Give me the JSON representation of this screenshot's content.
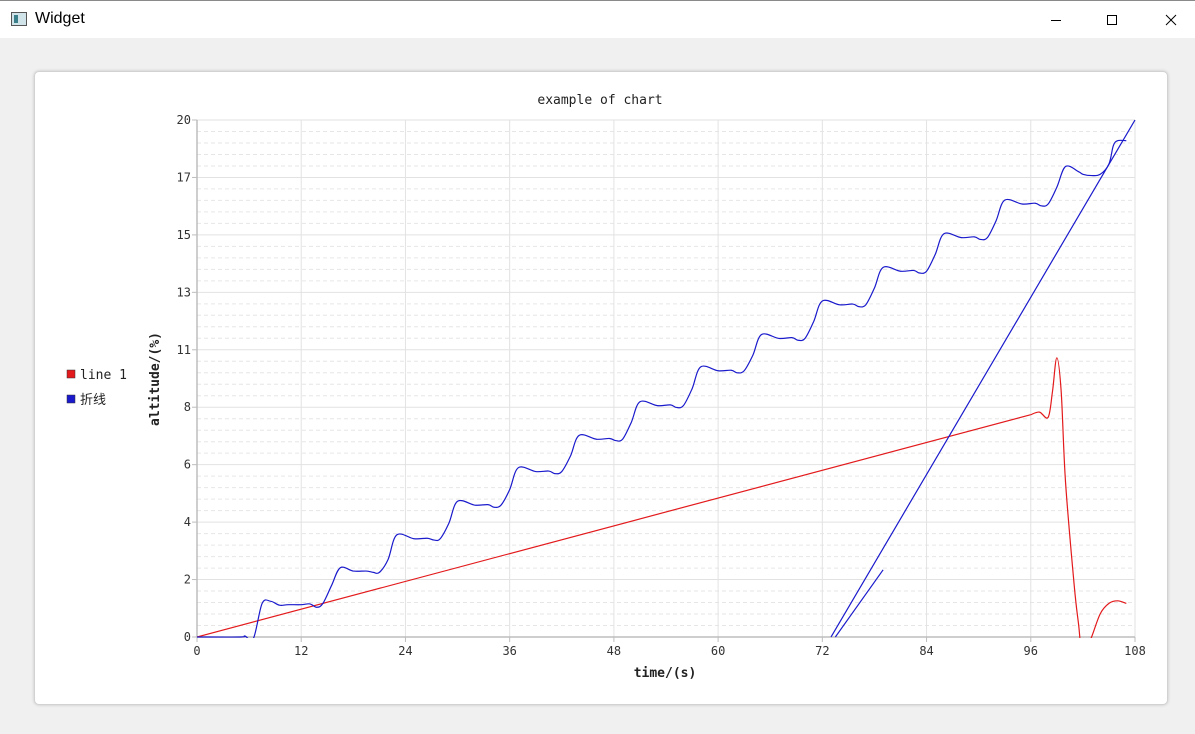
{
  "window": {
    "title": "Widget",
    "icon": "app-window-icon",
    "controls": [
      "minimize-icon",
      "maximize-icon",
      "close-icon"
    ]
  },
  "chart_data": {
    "type": "line",
    "title": "example of chart",
    "xlabel": "time/(s)",
    "ylabel": "altitude/(%)",
    "xlim": [
      0,
      108
    ],
    "ylim": [
      0,
      20
    ],
    "x_ticks": [
      "0",
      "12",
      "24",
      "36",
      "48",
      "60",
      "72",
      "84",
      "96",
      "108"
    ],
    "y_ticks": [
      "0",
      "2",
      "4",
      "6",
      "8",
      "11",
      "13",
      "15",
      "17",
      "20"
    ],
    "grid": true,
    "minor_grid": true,
    "legend_position": "left",
    "legend": [
      {
        "name": "line 1",
        "color": "#e31a1c"
      },
      {
        "name": "折线",
        "color": "#1a1acc"
      }
    ],
    "series": [
      {
        "name": "line 1",
        "color": "#e31a1c",
        "x": [
          0,
          96,
          97,
          98,
          98.5,
          99,
          99.5,
          100,
          101,
          101.5,
          102,
          103,
          104,
          105,
          106,
          107
        ],
        "y": [
          0,
          8.6,
          8.7,
          8.5,
          9.5,
          10.8,
          9.5,
          6.0,
          2.0,
          0.5,
          -0.8,
          0.0,
          0.9,
          1.3,
          1.4,
          1.3
        ]
      },
      {
        "name": "折线",
        "color": "#1a1acc",
        "paths": [
          {
            "x": [
              0,
              5,
              5.5,
              6.5,
              7.5,
              8.5,
              9.5,
              10.5,
              12,
              13,
              13.8,
              14.5,
              15.5,
              16.5,
              18,
              19.5,
              20.3,
              21,
              22,
              23,
              25,
              26.5,
              27.3,
              28,
              29,
              30,
              32,
              33.5,
              34.2,
              35,
              36,
              37,
              39,
              40.5,
              41.2,
              42,
              43,
              44,
              46,
              47.5,
              48.2,
              49,
              50,
              51,
              53,
              54.5,
              55.2,
              56,
              57,
              58,
              60,
              61.5,
              62.2,
              63,
              64,
              65,
              67,
              68.5,
              69.2,
              70,
              71,
              72,
              74,
              75.5,
              76.2,
              77,
              78,
              79,
              81,
              82.5,
              83.2,
              84,
              85,
              86,
              88,
              89.5,
              90.2,
              91,
              92,
              93,
              95,
              96.5,
              97.2,
              98,
              99,
              100,
              101.5,
              102,
              103,
              104,
              105,
              105.5,
              106,
              107
            ],
            "y": [
              0,
              0,
              0.04,
              -0.05,
              1.3,
              1.38,
              1.23,
              1.25,
              1.25,
              1.28,
              1.15,
              1.3,
              2.0,
              2.68,
              2.55,
              2.55,
              2.5,
              2.5,
              3.0,
              3.95,
              3.8,
              3.82,
              3.75,
              3.8,
              4.4,
              5.25,
              5.1,
              5.12,
              5.02,
              5.1,
              5.7,
              6.55,
              6.4,
              6.42,
              6.32,
              6.4,
              7.0,
              7.8,
              7.65,
              7.68,
              7.6,
              7.65,
              8.3,
              9.1,
              8.95,
              8.98,
              8.88,
              8.95,
              9.6,
              10.45,
              10.3,
              10.32,
              10.22,
              10.3,
              10.9,
              11.7,
              11.55,
              11.58,
              11.48,
              11.55,
              12.2,
              13.0,
              12.85,
              12.88,
              12.78,
              12.85,
              13.5,
              14.3,
              14.15,
              14.18,
              14.08,
              14.15,
              14.8,
              15.6,
              15.45,
              15.48,
              15.38,
              15.45,
              16.1,
              16.9,
              16.75,
              16.78,
              16.68,
              16.75,
              17.4,
              18.2,
              18.0,
              17.9,
              17.85,
              17.9,
              18.3,
              19.0,
              19.2,
              19.2
            ]
          },
          {
            "x": [
              73,
              108
            ],
            "y": [
              0,
              20
            ]
          },
          {
            "x": [
              73.5,
              79
            ],
            "y": [
              0,
              2.6
            ]
          }
        ]
      }
    ]
  }
}
